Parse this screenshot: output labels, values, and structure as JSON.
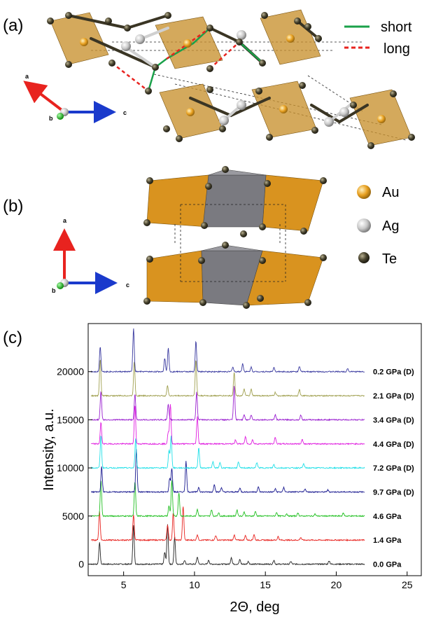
{
  "panels": {
    "a": "(a)",
    "b": "(b)",
    "c": "(c)"
  },
  "bond_legend": [
    {
      "label": "short",
      "color": "#1aa14a",
      "style": "solid"
    },
    {
      "label": "long",
      "color": "#e8231f",
      "style": "dashed"
    }
  ],
  "atom_legend": [
    {
      "label": "Au",
      "color": "#e8a020"
    },
    {
      "label": "Ag",
      "color": "#c8c8c8"
    },
    {
      "label": "Te",
      "color": "#4a4530"
    }
  ],
  "axes_a": {
    "a": "a",
    "b": "b",
    "c": "c"
  },
  "axes_b": {
    "a": "a",
    "b": "b",
    "c": "c"
  },
  "chart_data": {
    "type": "line",
    "xlabel": "2Θ, deg",
    "ylabel": "Intensity, a.u.",
    "xlim": [
      2.5,
      26
    ],
    "ylim": [
      -1200,
      25000
    ],
    "xticks": [
      5,
      10,
      15,
      20,
      25
    ],
    "yticks": [
      0,
      5000,
      10000,
      15000,
      20000
    ],
    "x_range": [
      2.7,
      22
    ],
    "peaks_x": [
      3.35,
      5.75,
      7.9,
      8.15,
      10.1,
      12.7,
      13.5,
      14.0,
      15.7,
      17.4,
      20.8
    ],
    "series": [
      {
        "name": "0.0 GPa",
        "color": "#222222",
        "offset": 0,
        "peaks": [
          3.3,
          5.7,
          7.9,
          8.1,
          8.6,
          9.3,
          10.2,
          11.0,
          12.6,
          13.2,
          13.8,
          15.6,
          16.8,
          19.5
        ]
      },
      {
        "name": "1.4 GPa",
        "color": "#e8231f",
        "offset": 2500,
        "peaks": [
          3.3,
          5.7,
          8.1,
          8.5,
          9.2,
          10.2,
          11.5,
          12.8,
          13.6,
          14.2,
          15.9,
          17.5
        ]
      },
      {
        "name": "4.6 GPa",
        "color": "#22c022",
        "offset": 5000,
        "peaks": [
          3.4,
          5.8,
          8.2,
          8.4,
          8.9,
          10.2,
          11.2,
          11.7,
          13.0,
          13.5,
          14.3,
          15.8,
          16.5,
          17.3,
          18.5,
          20.5
        ]
      },
      {
        "name": "9.7 GPa (D)",
        "color": "#1a1a90",
        "offset": 7500,
        "peaks": [
          3.45,
          5.9,
          8.25,
          8.4,
          9.4,
          10.3,
          11.4,
          11.9,
          13.2,
          14.5,
          15.7,
          16.3,
          17.8,
          19.4
        ]
      },
      {
        "name": "7.2 GPa (D)",
        "color": "#22e0e8",
        "offset": 10000,
        "peaks": [
          3.4,
          5.85,
          8.2,
          8.35,
          10.3,
          11.3,
          11.8,
          13.1,
          14.4,
          15.6,
          17.7
        ]
      },
      {
        "name": "4.4 GPa (D)",
        "color": "#e020e0",
        "offset": 12500,
        "peaks": [
          3.4,
          5.8,
          8.15,
          8.3,
          10.2,
          12.9,
          13.6,
          14.1,
          15.7,
          17.6
        ]
      },
      {
        "name": "3.4 GPa (D)",
        "color": "#9a20d0",
        "offset": 15000,
        "peaks": [
          3.4,
          5.8,
          8.15,
          10.15,
          12.8,
          13.5,
          14.0,
          15.7,
          17.5
        ]
      },
      {
        "name": "2.1 GPa (D)",
        "color": "#a0a050",
        "offset": 17500,
        "peaks": [
          3.35,
          5.75,
          8.1,
          10.1,
          12.8,
          13.5,
          14.0,
          15.7,
          17.4
        ]
      },
      {
        "name": "0.2 GPa (D)",
        "color": "#3a3aa0",
        "offset": 20000,
        "peaks": [
          3.35,
          5.7,
          7.9,
          8.15,
          10.1,
          12.7,
          13.4,
          14.0,
          15.6,
          17.4,
          20.8
        ]
      }
    ],
    "peak_heights": [
      3200,
      3800,
      1500,
      3500,
      3000,
      600,
      700,
      500,
      600,
      500,
      400,
      400,
      350,
      300,
      250,
      250
    ]
  }
}
